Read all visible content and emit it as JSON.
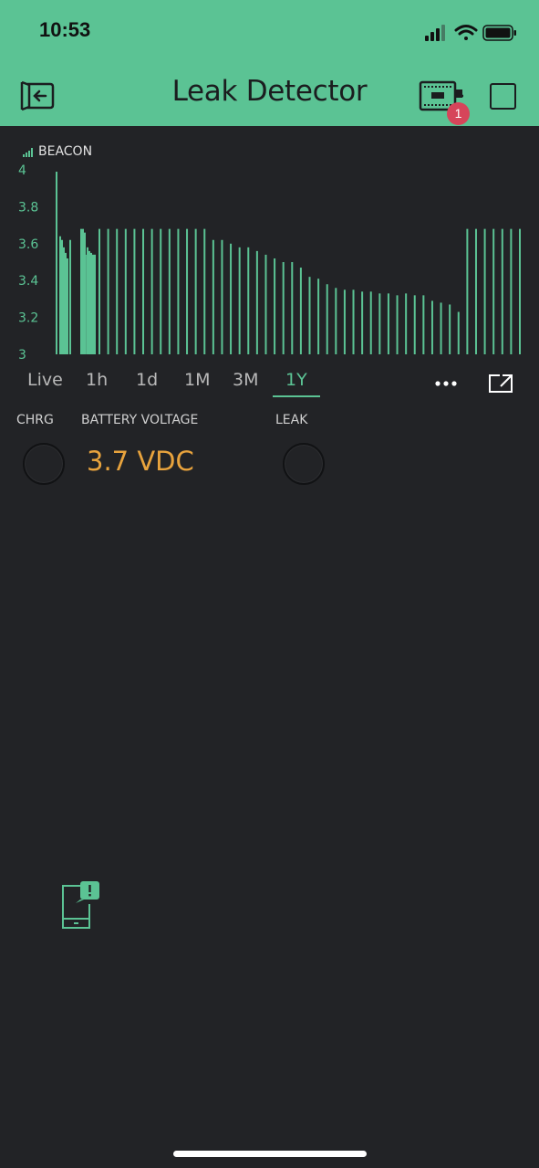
{
  "status_bar": {
    "time": "10:53"
  },
  "header": {
    "title": "Leak Detector",
    "badge_count": "1"
  },
  "chart_data": {
    "type": "bar",
    "title": "BEACON",
    "ylim": [
      3,
      4
    ],
    "yticks": [
      "4",
      "3.8",
      "3.6",
      "3.4",
      "3.2",
      "3"
    ],
    "series": [
      {
        "color": "#5bc394",
        "values": [
          3.99,
          3.64,
          3.62,
          3.58,
          3.55,
          3.52,
          3.62,
          3.68,
          3.68,
          3.66,
          3.58,
          3.56,
          3.55,
          3.54,
          3.54,
          3.68,
          3.68,
          3.68,
          3.68,
          3.68,
          3.68,
          3.68,
          3.68,
          3.68,
          3.68,
          3.68,
          3.68,
          3.68,
          3.62,
          3.62,
          3.6,
          3.58,
          3.58,
          3.56,
          3.54,
          3.52,
          3.5,
          3.5,
          3.47,
          3.42,
          3.41,
          3.38,
          3.36,
          3.35,
          3.35,
          3.34,
          3.34,
          3.33,
          3.33,
          3.32,
          3.33,
          3.32,
          3.32,
          3.29,
          3.28,
          3.27,
          3.23,
          3.68,
          3.68,
          3.68,
          3.68,
          3.68,
          3.68,
          3.68
        ]
      }
    ]
  },
  "range_tabs": {
    "items": [
      "Live",
      "1h",
      "1d",
      "1M",
      "3M",
      "1Y"
    ],
    "active": "1Y"
  },
  "widgets": {
    "chrg_label": "CHRG",
    "battery_label": "BATTERY VOLTAGE",
    "battery_value": "3.7 VDC",
    "leak_label": "LEAK"
  },
  "colors": {
    "accent": "#5bc394",
    "value": "#e8a33d",
    "background": "#222326",
    "badge": "#d6455a"
  }
}
